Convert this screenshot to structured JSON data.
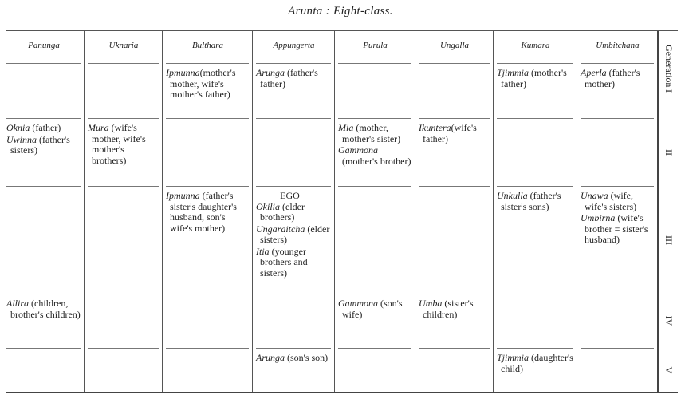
{
  "title": "Arunta :  Eight-class.",
  "generation_label": "Generation",
  "columns": [
    "Panunga",
    "Uknaria",
    "Bulthara",
    "Appungerta",
    "Purula",
    "Ungalla",
    "Kumara",
    "Umbitchana"
  ],
  "rows": [
    {
      "numeral": "I",
      "cells": [
        {
          "entries": []
        },
        {
          "entries": []
        },
        {
          "entries": [
            {
              "term": "Ipmunna",
              "desc": "(mother's mother, wife's mother's father)"
            }
          ]
        },
        {
          "entries": [
            {
              "term": "Arunga",
              "desc": " (father's father)"
            }
          ]
        },
        {
          "entries": []
        },
        {
          "entries": []
        },
        {
          "entries": [
            {
              "term": "Tjimmia",
              "desc": " (mother's father)"
            }
          ]
        },
        {
          "entries": [
            {
              "term": "Aperla",
              "desc": " (father's mother)"
            }
          ]
        }
      ]
    },
    {
      "numeral": "II",
      "cells": [
        {
          "entries": [
            {
              "term": "Oknia",
              "desc": " (father)"
            },
            {
              "term": "Uwinna",
              "desc": " (father's sisters)"
            }
          ]
        },
        {
          "entries": [
            {
              "term": "Mura",
              "desc": " (wife's mother, wife's mother's brothers)"
            }
          ]
        },
        {
          "entries": []
        },
        {
          "entries": []
        },
        {
          "entries": [
            {
              "term": "Mia",
              "desc": " (mother, mother's sister)"
            },
            {
              "term": "Gammona",
              "desc": " (mother's brother)"
            }
          ]
        },
        {
          "entries": [
            {
              "term": "Ikuntera",
              "desc": "(wife's father)"
            }
          ]
        },
        {
          "entries": []
        },
        {
          "entries": []
        }
      ]
    },
    {
      "numeral": "III",
      "cells": [
        {
          "entries": []
        },
        {
          "entries": []
        },
        {
          "entries": [
            {
              "term": "Ipmunna",
              "desc": " (father's sister's daughter's husband, son's wife's mother)"
            }
          ]
        },
        {
          "label": "EGO",
          "entries": [
            {
              "term": "Okilia",
              "desc": " (elder brothers)"
            },
            {
              "term": "Ungaraitcha",
              "desc": " (elder sisters)"
            },
            {
              "term": "Itia",
              "desc": " (younger brothers and sisters)"
            }
          ]
        },
        {
          "entries": []
        },
        {
          "entries": []
        },
        {
          "entries": [
            {
              "term": "Unkulla",
              "desc": " (father's sister's sons)"
            }
          ]
        },
        {
          "entries": [
            {
              "term": "Unawa",
              "desc": " (wife, wife's sisters)"
            },
            {
              "term": "Umbirna",
              "desc": " (wife's brother = sister's husband)"
            }
          ]
        }
      ]
    },
    {
      "numeral": "IV",
      "cells": [
        {
          "entries": [
            {
              "term": "Allira",
              "desc": " (children, brother's children)"
            }
          ]
        },
        {
          "entries": []
        },
        {
          "entries": []
        },
        {
          "entries": []
        },
        {
          "entries": [
            {
              "term": "Gammona",
              "desc": " (son's wife)"
            }
          ]
        },
        {
          "entries": [
            {
              "term": "Umba",
              "desc": " (sister's children)"
            }
          ]
        },
        {
          "entries": []
        },
        {
          "entries": []
        }
      ]
    },
    {
      "numeral": "V",
      "cells": [
        {
          "entries": []
        },
        {
          "entries": []
        },
        {
          "entries": []
        },
        {
          "entries": [
            {
              "term": "Arunga",
              "desc": " (son's son)"
            }
          ]
        },
        {
          "entries": []
        },
        {
          "entries": []
        },
        {
          "entries": [
            {
              "term": "Tjimmia",
              "desc": " (daughter's child)"
            }
          ]
        },
        {
          "entries": []
        }
      ]
    }
  ]
}
